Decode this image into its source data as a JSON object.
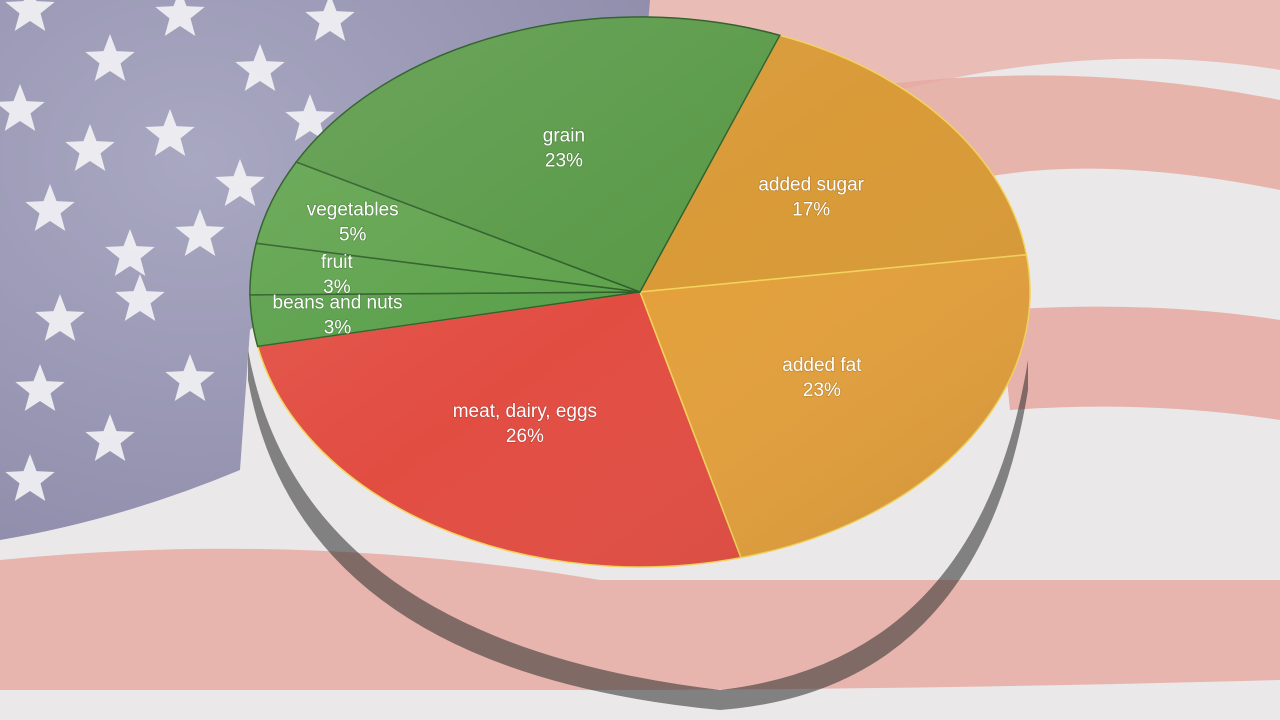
{
  "chart_data": {
    "type": "pie",
    "title": "",
    "legend": "none",
    "slices": [
      {
        "label": "added sugar",
        "value": 17,
        "value_label": "17%",
        "color": "#d99a37"
      },
      {
        "label": "added fat",
        "value": 23,
        "value_label": "23%",
        "color": "#e3a03c"
      },
      {
        "label": "meat, dairy, eggs",
        "value": 26,
        "value_label": "26%",
        "color": "#e24d42"
      },
      {
        "label": "beans and nuts",
        "value": 3,
        "value_label": "3%",
        "color": "#5aa04a"
      },
      {
        "label": "fruit",
        "value": 3,
        "value_label": "3%",
        "color": "#5ea34c"
      },
      {
        "label": "vegetables",
        "value": 5,
        "value_label": "5%",
        "color": "#60a34d"
      },
      {
        "label": "grain",
        "value": 23,
        "value_label": "23%",
        "color": "#5a9a48"
      }
    ]
  },
  "background": {
    "description_colors": {
      "flag_blue": "#9c9ab6",
      "flag_red": "#e4a79f",
      "flag_white": "#eeeeee"
    }
  }
}
